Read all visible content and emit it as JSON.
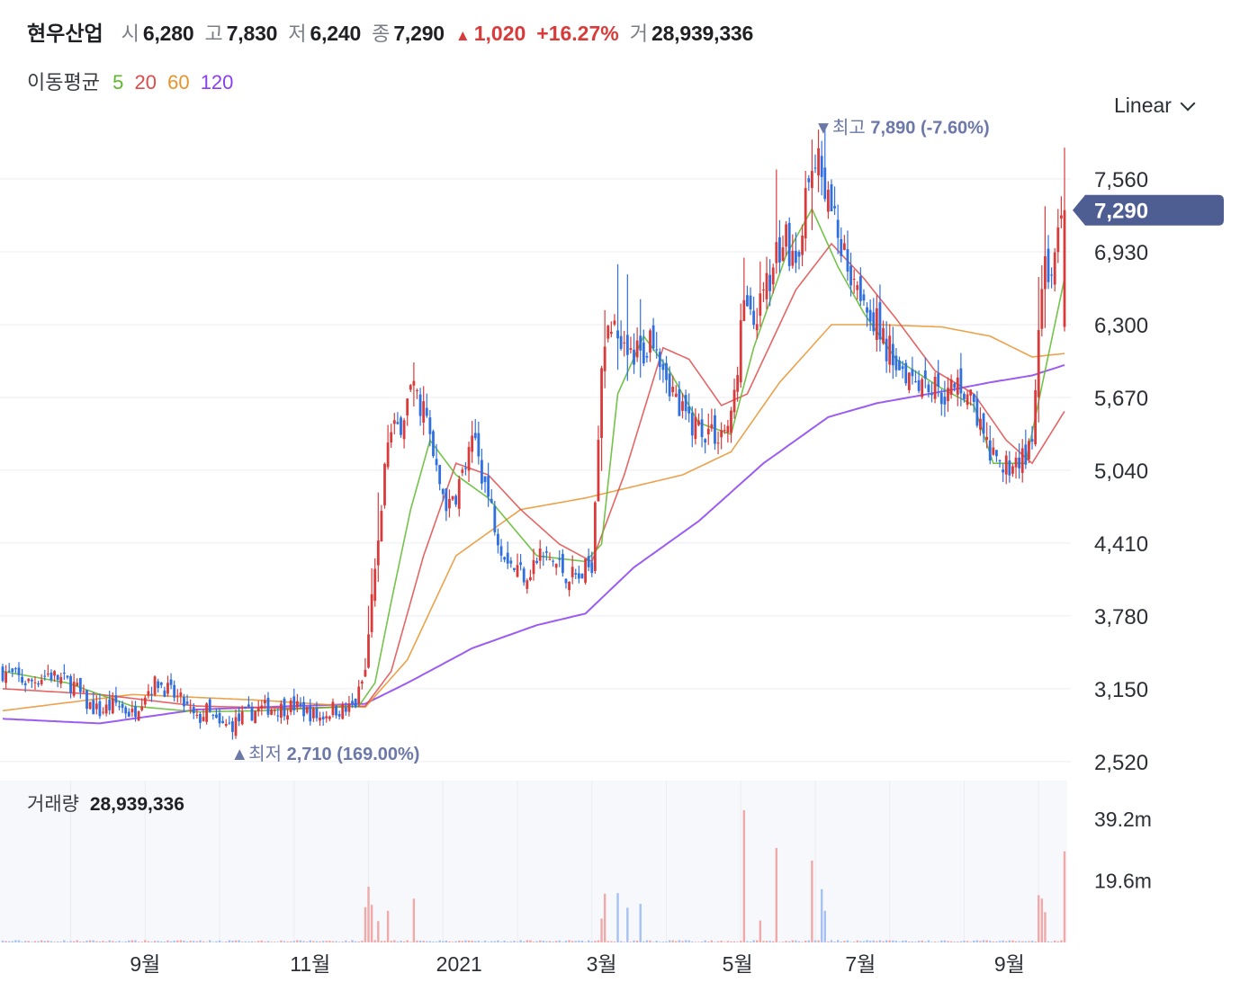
{
  "header": {
    "name": "현우산업",
    "open_label": "시",
    "open": "6,280",
    "high_label": "고",
    "high": "7,830",
    "low_label": "저",
    "low": "6,240",
    "close_label": "종",
    "close": "7,290",
    "change_arrow": "▲",
    "change": "1,020",
    "change_pct": "+16.27%",
    "volume_label": "거",
    "volume": "28,939,336"
  },
  "moving_average": {
    "label": "이동평균",
    "periods": [
      "5",
      "20",
      "60",
      "120"
    ],
    "colors": {
      "5": "#5cb82a",
      "20": "#e04a4a",
      "60": "#e8922b",
      "120": "#8a3ff0"
    }
  },
  "scale_selector": {
    "value": "Linear",
    "icon": "chevron-down-icon"
  },
  "volume_panel": {
    "label": "거래량",
    "value": "28,939,336"
  },
  "colors": {
    "up": "#d93b3b",
    "down": "#2f6fe0",
    "badge": "#4e5d92",
    "annotation": "#6b78a8"
  },
  "chart_data": {
    "type": "candlestick",
    "y_ticks": [
      "7,560",
      "6,930",
      "6,300",
      "5,670",
      "5,040",
      "4,410",
      "3,780",
      "3,150",
      "2,520"
    ],
    "y_tick_values": [
      7560,
      6930,
      6300,
      5670,
      5040,
      4410,
      3780,
      3150,
      2520
    ],
    "ylim": [
      2480,
      7980
    ],
    "x_tick_labels": [
      "9월",
      "11월",
      "2021",
      "3월",
      "5월",
      "7월",
      "9월"
    ],
    "current_price_badge": "7,290",
    "current_price": 7290,
    "high_annotation": {
      "arrow": "▼",
      "label": "최고",
      "value": "7,890",
      "pct": "(-7.60%)",
      "price": 7890
    },
    "low_annotation": {
      "arrow": "▲",
      "label": "최저",
      "value": "2,710",
      "pct": "(169.00%)",
      "price": 2710
    },
    "volume_ticks": [
      "39.2m",
      "19.6m"
    ],
    "volume_tick_values": [
      39200000,
      19600000
    ],
    "volume_max": 48000000,
    "close_path": [
      [
        0,
        3300
      ],
      [
        8,
        3200
      ],
      [
        14,
        3280
      ],
      [
        18,
        3230
      ],
      [
        22,
        3180
      ],
      [
        26,
        3020
      ],
      [
        30,
        2950
      ],
      [
        35,
        3020
      ],
      [
        40,
        2930
      ],
      [
        44,
        3120
      ],
      [
        48,
        3210
      ],
      [
        52,
        3110
      ],
      [
        56,
        3020
      ],
      [
        60,
        2870
      ],
      [
        63,
        2960
      ],
      [
        67,
        2820
      ],
      [
        71,
        2840
      ],
      [
        74,
        2900
      ],
      [
        78,
        2960
      ],
      [
        82,
        2990
      ],
      [
        86,
        2980
      ],
      [
        90,
        3000
      ],
      [
        94,
        2950
      ],
      [
        98,
        2900
      ],
      [
        102,
        2980
      ],
      [
        106,
        2960
      ],
      [
        109,
        3020
      ],
      [
        112,
        3300
      ],
      [
        115,
        4200
      ],
      [
        119,
        5300
      ],
      [
        122,
        5400
      ],
      [
        126,
        5700
      ],
      [
        130,
        5600
      ],
      [
        134,
        5000
      ],
      [
        138,
        4700
      ],
      [
        142,
        5000
      ],
      [
        146,
        5300
      ],
      [
        150,
        4800
      ],
      [
        154,
        4400
      ],
      [
        158,
        4200
      ],
      [
        162,
        4150
      ],
      [
        166,
        4300
      ],
      [
        170,
        4250
      ],
      [
        174,
        4150
      ],
      [
        178,
        4100
      ],
      [
        182,
        4250
      ],
      [
        185,
        6000
      ],
      [
        189,
        6300
      ],
      [
        193,
        6150
      ],
      [
        197,
        6000
      ],
      [
        201,
        6250
      ],
      [
        205,
        5900
      ],
      [
        209,
        5550
      ],
      [
        213,
        5450
      ],
      [
        217,
        5400
      ],
      [
        221,
        5350
      ],
      [
        225,
        5450
      ],
      [
        229,
        6500
      ],
      [
        233,
        6400
      ],
      [
        237,
        6650
      ],
      [
        241,
        7100
      ],
      [
        245,
        6850
      ],
      [
        249,
        7500
      ],
      [
        253,
        7700
      ],
      [
        256,
        7300
      ],
      [
        260,
        6900
      ],
      [
        264,
        6700
      ],
      [
        268,
        6450
      ],
      [
        272,
        6150
      ],
      [
        276,
        6000
      ],
      [
        280,
        5900
      ],
      [
        284,
        5850
      ],
      [
        288,
        5750
      ],
      [
        292,
        5700
      ],
      [
        296,
        5800
      ],
      [
        300,
        5600
      ],
      [
        303,
        5300
      ],
      [
        307,
        5050
      ],
      [
        311,
        5100
      ],
      [
        315,
        5150
      ],
      [
        318,
        5200
      ],
      [
        321,
        6700
      ],
      [
        325,
        6900
      ],
      [
        328,
        7290
      ]
    ],
    "ma_paths": {
      "5": [
        [
          0,
          3300
        ],
        [
          20,
          3200
        ],
        [
          40,
          3000
        ],
        [
          60,
          2950
        ],
        [
          80,
          2960
        ],
        [
          110,
          3000
        ],
        [
          115,
          3200
        ],
        [
          120,
          3900
        ],
        [
          126,
          4700
        ],
        [
          132,
          5300
        ],
        [
          140,
          5000
        ],
        [
          150,
          4800
        ],
        [
          165,
          4300
        ],
        [
          180,
          4250
        ],
        [
          185,
          4400
        ],
        [
          190,
          5700
        ],
        [
          198,
          6200
        ],
        [
          206,
          5900
        ],
        [
          215,
          5450
        ],
        [
          225,
          5350
        ],
        [
          232,
          6100
        ],
        [
          242,
          6900
        ],
        [
          250,
          7300
        ],
        [
          258,
          6800
        ],
        [
          266,
          6400
        ],
        [
          276,
          6000
        ],
        [
          290,
          5750
        ],
        [
          300,
          5600
        ],
        [
          306,
          5100
        ],
        [
          316,
          5100
        ],
        [
          322,
          5900
        ],
        [
          328,
          6700
        ]
      ],
      "20": [
        [
          0,
          3150
        ],
        [
          30,
          3100
        ],
        [
          60,
          3000
        ],
        [
          90,
          2980
        ],
        [
          112,
          3000
        ],
        [
          120,
          3300
        ],
        [
          130,
          4300
        ],
        [
          140,
          5100
        ],
        [
          150,
          5000
        ],
        [
          160,
          4700
        ],
        [
          172,
          4400
        ],
        [
          182,
          4250
        ],
        [
          192,
          5000
        ],
        [
          204,
          6100
        ],
        [
          212,
          6000
        ],
        [
          222,
          5600
        ],
        [
          230,
          5700
        ],
        [
          245,
          6600
        ],
        [
          256,
          7000
        ],
        [
          266,
          6700
        ],
        [
          276,
          6350
        ],
        [
          288,
          5900
        ],
        [
          300,
          5700
        ],
        [
          310,
          5300
        ],
        [
          318,
          5100
        ],
        [
          328,
          5550
        ]
      ],
      "60": [
        [
          0,
          2960
        ],
        [
          40,
          3100
        ],
        [
          80,
          3050
        ],
        [
          112,
          2990
        ],
        [
          125,
          3400
        ],
        [
          140,
          4300
        ],
        [
          160,
          4700
        ],
        [
          180,
          4800
        ],
        [
          195,
          4900
        ],
        [
          210,
          5000
        ],
        [
          225,
          5200
        ],
        [
          240,
          5800
        ],
        [
          256,
          6300
        ],
        [
          270,
          6300
        ],
        [
          290,
          6280
        ],
        [
          305,
          6200
        ],
        [
          318,
          6020
        ],
        [
          328,
          6050
        ]
      ],
      "120": [
        [
          0,
          2890
        ],
        [
          30,
          2850
        ],
        [
          60,
          2970
        ],
        [
          90,
          3000
        ],
        [
          112,
          3020
        ],
        [
          125,
          3200
        ],
        [
          145,
          3500
        ],
        [
          165,
          3700
        ],
        [
          180,
          3800
        ],
        [
          195,
          4200
        ],
        [
          215,
          4600
        ],
        [
          235,
          5100
        ],
        [
          255,
          5500
        ],
        [
          270,
          5620
        ],
        [
          290,
          5720
        ],
        [
          305,
          5800
        ],
        [
          318,
          5860
        ],
        [
          328,
          5950
        ]
      ]
    }
  }
}
